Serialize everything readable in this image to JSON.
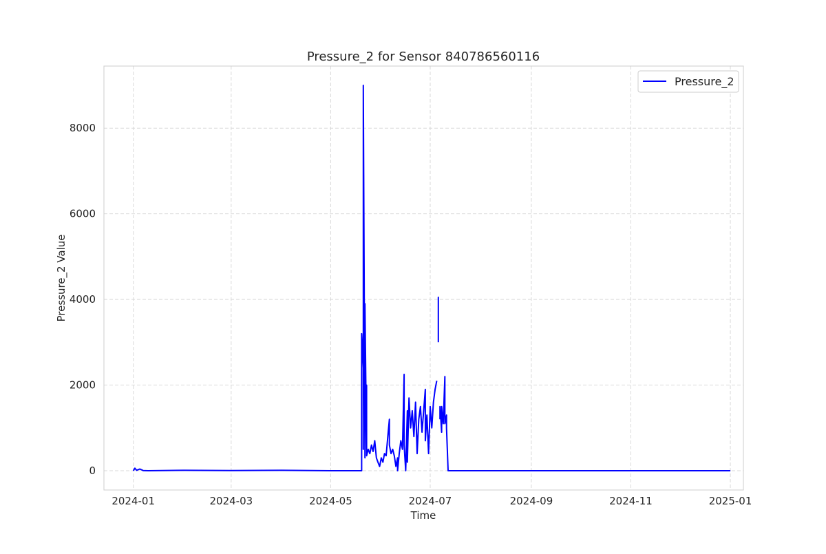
{
  "chart_data": {
    "type": "line",
    "title": "Pressure_2 for Sensor 840786560116",
    "xlabel": "Time",
    "ylabel": "Pressure_2 Value",
    "xlim": [
      "2023-12-14",
      "2025-01-09"
    ],
    "ylim": [
      -450,
      9450
    ],
    "x_ticks": [
      "2024-01",
      "2024-03",
      "2024-05",
      "2024-07",
      "2024-09",
      "2024-11",
      "2025-01"
    ],
    "y_ticks": [
      0,
      2000,
      4000,
      6000,
      8000
    ],
    "grid": true,
    "legend_position": "top-right",
    "colors": {
      "series": "#0000ff",
      "grid": "#d9d9d9",
      "frame": "#cccccc",
      "text": "#262626"
    },
    "series": [
      {
        "name": "Pressure_2",
        "color": "#0000ff",
        "segments": [
          [
            {
              "x": "2024-01-01",
              "y": 0
            },
            {
              "x": "2024-01-02",
              "y": 60
            },
            {
              "x": "2024-01-03",
              "y": 10
            },
            {
              "x": "2024-01-05",
              "y": 40
            },
            {
              "x": "2024-01-07",
              "y": 5
            },
            {
              "x": "2024-01-10",
              "y": 0
            },
            {
              "x": "2024-02-01",
              "y": 10
            },
            {
              "x": "2024-03-01",
              "y": 5
            },
            {
              "x": "2024-04-01",
              "y": 10
            },
            {
              "x": "2024-05-01",
              "y": 0
            },
            {
              "x": "2024-05-20",
              "y": 0
            },
            {
              "x": "2024-05-20",
              "y": 3200
            },
            {
              "x": "2024-05-20",
              "y": 2400
            },
            {
              "x": "2024-05-21",
              "y": 3200
            },
            {
              "x": "2024-05-21",
              "y": 500
            },
            {
              "x": "2024-05-21",
              "y": 9000
            },
            {
              "x": "2024-05-22",
              "y": 300
            },
            {
              "x": "2024-05-22",
              "y": 3900
            },
            {
              "x": "2024-05-23",
              "y": 400
            },
            {
              "x": "2024-05-23",
              "y": 2000
            },
            {
              "x": "2024-05-23",
              "y": 350
            },
            {
              "x": "2024-05-24",
              "y": 500
            },
            {
              "x": "2024-05-25",
              "y": 400
            },
            {
              "x": "2024-05-26",
              "y": 600
            },
            {
              "x": "2024-05-27",
              "y": 450
            },
            {
              "x": "2024-05-28",
              "y": 700
            },
            {
              "x": "2024-05-29",
              "y": 300
            },
            {
              "x": "2024-05-30",
              "y": 200
            },
            {
              "x": "2024-05-31",
              "y": 100
            },
            {
              "x": "2024-06-01",
              "y": 300
            },
            {
              "x": "2024-06-02",
              "y": 200
            },
            {
              "x": "2024-06-03",
              "y": 400
            },
            {
              "x": "2024-06-04",
              "y": 350
            },
            {
              "x": "2024-06-05",
              "y": 800
            },
            {
              "x": "2024-06-06",
              "y": 1200
            },
            {
              "x": "2024-06-06",
              "y": 600
            },
            {
              "x": "2024-06-07",
              "y": 400
            },
            {
              "x": "2024-06-08",
              "y": 500
            },
            {
              "x": "2024-06-09",
              "y": 350
            },
            {
              "x": "2024-06-10",
              "y": 100
            },
            {
              "x": "2024-06-11",
              "y": 300
            },
            {
              "x": "2024-06-11",
              "y": 0
            },
            {
              "x": "2024-06-12",
              "y": 400
            },
            {
              "x": "2024-06-13",
              "y": 700
            },
            {
              "x": "2024-06-14",
              "y": 500
            },
            {
              "x": "2024-06-15",
              "y": 2250
            },
            {
              "x": "2024-06-15",
              "y": 600
            },
            {
              "x": "2024-06-16",
              "y": 0
            },
            {
              "x": "2024-06-17",
              "y": 1400
            },
            {
              "x": "2024-06-17",
              "y": 200
            },
            {
              "x": "2024-06-18",
              "y": 1700
            },
            {
              "x": "2024-06-19",
              "y": 1000
            },
            {
              "x": "2024-06-20",
              "y": 1400
            },
            {
              "x": "2024-06-21",
              "y": 800
            },
            {
              "x": "2024-06-22",
              "y": 1600
            },
            {
              "x": "2024-06-23",
              "y": 400
            },
            {
              "x": "2024-06-24",
              "y": 1200
            },
            {
              "x": "2024-06-25",
              "y": 1500
            },
            {
              "x": "2024-06-26",
              "y": 900
            },
            {
              "x": "2024-06-27",
              "y": 1400
            },
            {
              "x": "2024-06-28",
              "y": 1900
            },
            {
              "x": "2024-06-28",
              "y": 700
            },
            {
              "x": "2024-06-29",
              "y": 1300
            },
            {
              "x": "2024-06-30",
              "y": 400
            },
            {
              "x": "2024-07-01",
              "y": 1500
            },
            {
              "x": "2024-07-02",
              "y": 1000
            },
            {
              "x": "2024-07-03",
              "y": 1600
            },
            {
              "x": "2024-07-04",
              "y": 1900
            },
            {
              "x": "2024-07-05",
              "y": 2100
            }
          ],
          [
            {
              "x": "2024-07-06",
              "y": 3000
            },
            {
              "x": "2024-07-06",
              "y": 4050
            },
            {
              "x": "2024-07-06",
              "y": 3300
            },
            {
              "x": "2024-07-06",
              "y": 3900
            }
          ],
          [
            {
              "x": "2024-07-07",
              "y": 1200
            },
            {
              "x": "2024-07-07",
              "y": 1500
            },
            {
              "x": "2024-07-08",
              "y": 900
            },
            {
              "x": "2024-07-08",
              "y": 1500
            },
            {
              "x": "2024-07-09",
              "y": 1100
            },
            {
              "x": "2024-07-10",
              "y": 2200
            },
            {
              "x": "2024-07-10",
              "y": 1100
            },
            {
              "x": "2024-07-11",
              "y": 1300
            },
            {
              "x": "2024-07-11",
              "y": 1000
            },
            {
              "x": "2024-07-12",
              "y": 0
            },
            {
              "x": "2024-08-01",
              "y": 0
            },
            {
              "x": "2024-09-01",
              "y": 0
            },
            {
              "x": "2024-10-01",
              "y": 0
            },
            {
              "x": "2024-11-01",
              "y": 0
            },
            {
              "x": "2024-12-01",
              "y": 0
            },
            {
              "x": "2025-01-01",
              "y": 0
            }
          ]
        ]
      }
    ]
  }
}
